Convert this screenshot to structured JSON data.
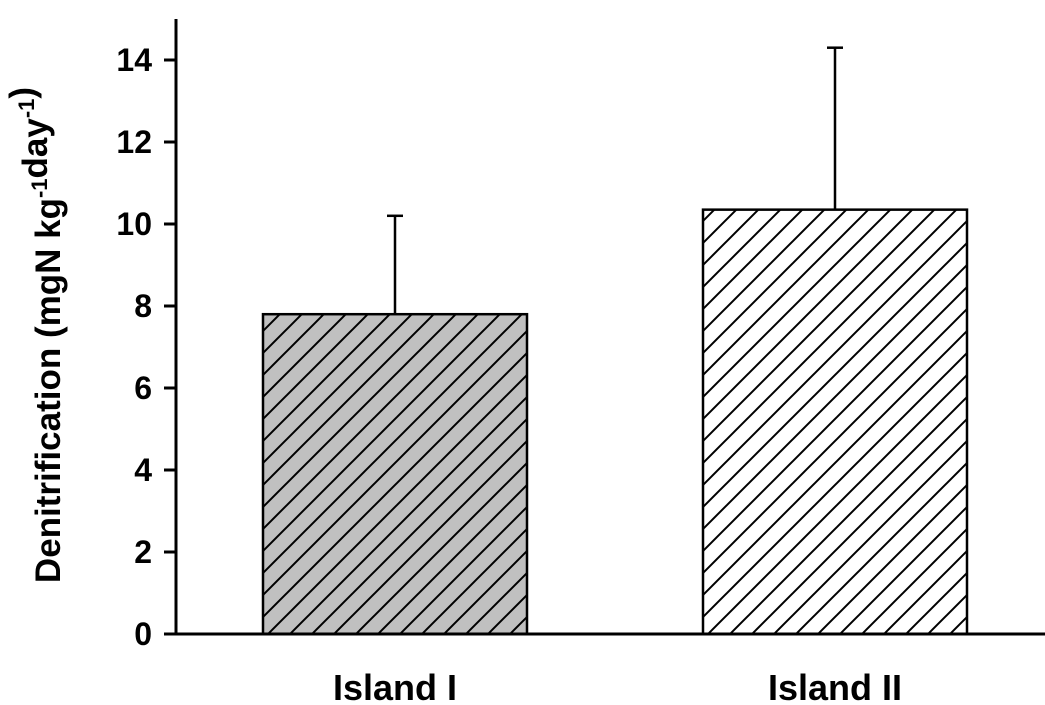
{
  "chart_data": {
    "type": "bar",
    "title": "",
    "xlabel": "",
    "ylabel": {
      "parts": [
        {
          "text": "Denitrification (mgN kg",
          "sup": false
        },
        {
          "text": "-1",
          "sup": true
        },
        {
          "text": "day",
          "sup": false
        },
        {
          "text": "-1",
          "sup": true
        },
        {
          "text": ")",
          "sup": false
        }
      ]
    },
    "categories": [
      "Island I",
      "Island II"
    ],
    "values": [
      7.8,
      10.35
    ],
    "error_upper": [
      2.4,
      3.95
    ],
    "ylim": [
      0,
      15
    ],
    "yticks": [
      0,
      2,
      4,
      6,
      8,
      10,
      12,
      14
    ],
    "grid": false,
    "legend": "none",
    "bar_fills": [
      "#c0c0c0",
      "#ffffff"
    ],
    "bar_pattern": "diagonal-hatch",
    "stroke_color": "#000000"
  }
}
